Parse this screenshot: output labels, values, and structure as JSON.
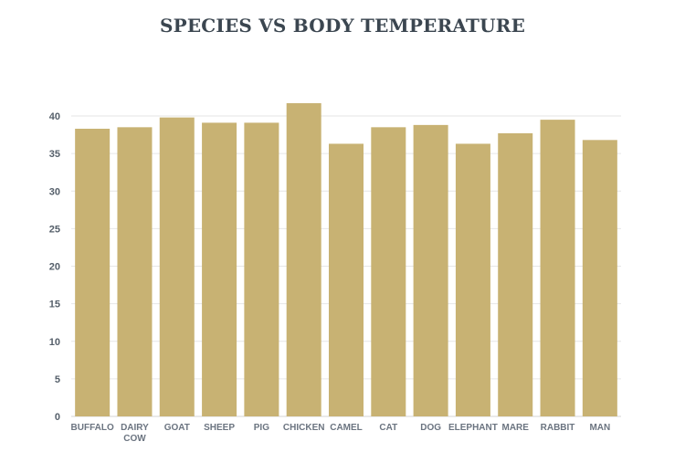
{
  "chart_data": {
    "type": "bar",
    "title": "SPECIES VS BODY TEMPERATURE",
    "xlabel": "",
    "ylabel": "",
    "categories": [
      "BUFFALO",
      "DAIRY COW",
      "GOAT",
      "SHEEP",
      "PIG",
      "CHICKEN",
      "CAMEL",
      "CAT",
      "DOG",
      "ELEPHANT",
      "MARE",
      "RABBIT",
      "MAN"
    ],
    "values": [
      38.3,
      38.5,
      39.8,
      39.1,
      39.1,
      41.7,
      36.3,
      38.5,
      38.8,
      36.3,
      37.7,
      39.5,
      36.8
    ],
    "ylim": [
      0,
      40
    ],
    "yticks": [
      0,
      5,
      10,
      15,
      20,
      25,
      30,
      35,
      40
    ],
    "grid": true,
    "legend": "none",
    "bar_color": "#c8b273",
    "grid_color": "#e6e6e6"
  }
}
